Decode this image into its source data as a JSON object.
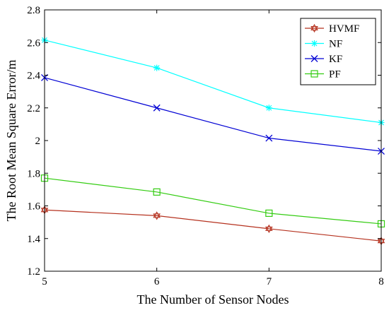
{
  "chart_data": {
    "type": "line",
    "xlabel": "The Number of Sensor Nodes",
    "ylabel": "The Root Mean Square Error/m",
    "x": [
      5,
      6,
      7,
      8
    ],
    "xlim": [
      5,
      8
    ],
    "ylim": [
      1.2,
      2.8
    ],
    "xticks": [
      "5",
      "6",
      "7",
      "8"
    ],
    "yticks": [
      "1.2",
      "1.4",
      "1.6",
      "1.8",
      "2",
      "2.2",
      "2.4",
      "2.6",
      "2.8"
    ],
    "grid": false,
    "legend_position": "top-right",
    "series": [
      {
        "name": "HVMF",
        "color": "#b5311e",
        "marker": "hexagram",
        "values": [
          1.575,
          1.54,
          1.46,
          1.385
        ]
      },
      {
        "name": "NF",
        "color": "#00ffff",
        "marker": "asterisk",
        "values": [
          2.615,
          2.445,
          2.2,
          2.11
        ]
      },
      {
        "name": "KF",
        "color": "#0000d4",
        "marker": "x",
        "values": [
          2.385,
          2.2,
          2.015,
          1.935
        ]
      },
      {
        "name": "PF",
        "color": "#33cc11",
        "marker": "square",
        "values": [
          1.77,
          1.685,
          1.555,
          1.49
        ]
      }
    ]
  }
}
